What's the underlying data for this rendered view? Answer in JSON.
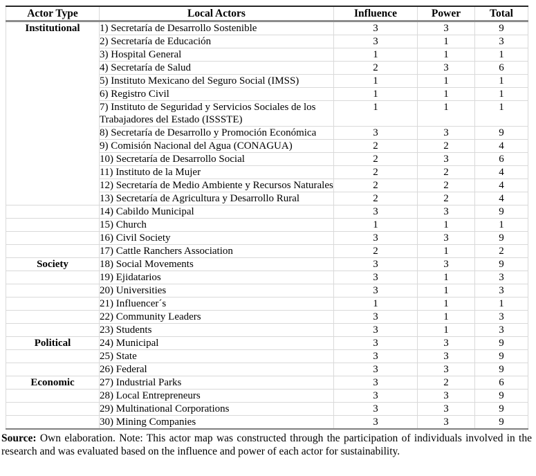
{
  "table": {
    "headers": [
      "Actor Type",
      "Local Actors",
      "Influence",
      "Power",
      "Total"
    ],
    "rows": [
      {
        "group": "Institutional",
        "rowspan": 13,
        "actor": "1) Secretaría de Desarrollo Sostenible",
        "influence": "3",
        "power": "3",
        "total": "9"
      },
      {
        "actor": "2) Secretaría de Educación",
        "influence": "3",
        "power": "1",
        "total": "3"
      },
      {
        "actor": "3) Hospital General",
        "influence": "1",
        "power": "1",
        "total": "1"
      },
      {
        "actor": "4) Secretaría de Salud",
        "influence": "2",
        "power": "3",
        "total": "6"
      },
      {
        "actor": "5) Instituto Mexicano del Seguro Social (IMSS)",
        "influence": "1",
        "power": "1",
        "total": "1"
      },
      {
        "actor": "6) Registro Civil",
        "influence": "1",
        "power": "1",
        "total": "1"
      },
      {
        "actor": "7) Instituto de Seguridad y Servicios Sociales de los Trabajadores del Estado (ISSSTE)",
        "influence": "1",
        "power": "1",
        "total": "1"
      },
      {
        "actor": "8) Secretaría de Desarrollo y Promoción Económica",
        "influence": "3",
        "power": "3",
        "total": "9"
      },
      {
        "actor": "9) Comisión Nacional del Agua (CONAGUA)",
        "influence": "2",
        "power": "2",
        "total": "4"
      },
      {
        "actor": "10) Secretaría de Desarrollo Social",
        "influence": "2",
        "power": "3",
        "total": "6"
      },
      {
        "actor": "11) Instituto de la Mujer",
        "influence": "2",
        "power": "2",
        "total": "4"
      },
      {
        "actor": "12) Secretaría de Medio Ambiente y Recursos Naturales",
        "influence": "2",
        "power": "2",
        "total": "4"
      },
      {
        "actor": "13) Secretaría de Agricultura y Desarrollo Rural",
        "influence": "2",
        "power": "2",
        "total": "4"
      },
      {
        "group": "",
        "rowspan": 1,
        "actor": "14) Cabildo Municipal",
        "influence": "3",
        "power": "3",
        "total": "9"
      },
      {
        "group": "",
        "rowspan": 1,
        "actor": "15) Church",
        "influence": "1",
        "power": "1",
        "total": "1"
      },
      {
        "group": "",
        "rowspan": 1,
        "actor": "16) Civil Society",
        "influence": "3",
        "power": "3",
        "total": "9"
      },
      {
        "group": "",
        "rowspan": 1,
        "actor": "17) Cattle Ranchers Association",
        "influence": "2",
        "power": "1",
        "total": "2"
      },
      {
        "group": "Society",
        "rowspan": 1,
        "actor": "18) Social Movements",
        "influence": "3",
        "power": "3",
        "total": "9"
      },
      {
        "group": "",
        "rowspan": 1,
        "actor": "19) Ejidatarios",
        "influence": "3",
        "power": "1",
        "total": "3"
      },
      {
        "group": "",
        "rowspan": 1,
        "actor": "20) Universities",
        "influence": "3",
        "power": "1",
        "total": "3"
      },
      {
        "group": "",
        "rowspan": 1,
        "actor": "21) Influencer´s",
        "influence": "1",
        "power": "1",
        "total": "1"
      },
      {
        "group": "",
        "rowspan": 1,
        "actor": "22) Community Leaders",
        "influence": "3",
        "power": "1",
        "total": "3"
      },
      {
        "group": "",
        "rowspan": 1,
        "actor": "23) Students",
        "influence": "3",
        "power": "1",
        "total": "3"
      },
      {
        "group": "Political",
        "rowspan": 1,
        "actor": "24) Municipal",
        "influence": "3",
        "power": "3",
        "total": "9"
      },
      {
        "group": "",
        "rowspan": 1,
        "actor": "25) State",
        "influence": "3",
        "power": "3",
        "total": "9"
      },
      {
        "group": "",
        "rowspan": 1,
        "actor": "26) Federal",
        "influence": "3",
        "power": "3",
        "total": "9"
      },
      {
        "group": "Economic",
        "rowspan": 1,
        "actor": "27) Industrial Parks",
        "influence": "3",
        "power": "2",
        "total": "6"
      },
      {
        "group": "",
        "rowspan": 1,
        "actor": "28) Local Entrepreneurs",
        "influence": "3",
        "power": "3",
        "total": "9"
      },
      {
        "group": "",
        "rowspan": 1,
        "actor": "29) Multinational Corporations",
        "influence": "3",
        "power": "3",
        "total": "9"
      },
      {
        "group": "",
        "rowspan": 1,
        "actor": "30) Mining Companies",
        "influence": "3",
        "power": "3",
        "total": "9"
      }
    ]
  },
  "footer": {
    "source_label": "Source:",
    "rest": " Own elaboration. Note: This actor map was constructed through the participation of individuals involved in the research and was evaluated based on the influence and power of each actor for sustainability."
  },
  "colors": {
    "grid_light": "#d9d9d9",
    "border_dark": "#262626",
    "border_gray": "#8c8c8c",
    "text": "#000000"
  }
}
